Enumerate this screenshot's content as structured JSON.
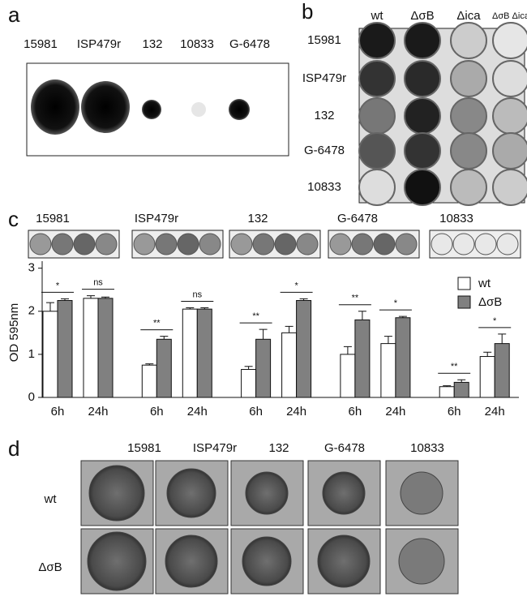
{
  "panel_a": {
    "label": "a",
    "strains": [
      "15981",
      "ISP479r",
      "132",
      "10833",
      "G-6478"
    ]
  },
  "panel_b": {
    "label": "b",
    "columns": [
      "wt",
      "ΔσB",
      "Δica",
      "ΔσB Δica"
    ],
    "rows": [
      "15981",
      "ISP479r",
      "132",
      "G-6478",
      "10833"
    ]
  },
  "chart_data": {
    "type": "bar",
    "label": "c",
    "ylabel": "OD 595nm",
    "groups": [
      "15981",
      "ISP479r",
      "132",
      "G-6478",
      "10833"
    ],
    "categories": [
      "6h",
      "24h",
      "6h",
      "24h",
      "6h",
      "24h",
      "6h",
      "24h",
      "6h",
      "24h"
    ],
    "series": [
      {
        "name": "wt",
        "color": "#ffffff",
        "values": [
          2.0,
          2.3,
          0.75,
          2.05,
          0.65,
          1.5,
          1.0,
          1.25,
          0.25,
          0.95
        ],
        "errors": [
          0.2,
          0.06,
          0.03,
          0.03,
          0.07,
          0.15,
          0.18,
          0.17,
          0.02,
          0.1
        ]
      },
      {
        "name": "ΔσB",
        "color": "#808080",
        "values": [
          2.25,
          2.3,
          1.35,
          2.05,
          1.35,
          2.25,
          1.8,
          1.85,
          0.35,
          1.25
        ],
        "errors": [
          0.04,
          0.03,
          0.07,
          0.03,
          0.23,
          0.04,
          0.2,
          0.03,
          0.06,
          0.22
        ]
      }
    ],
    "significance": [
      "*",
      "ns",
      "**",
      "ns",
      "**",
      "*",
      "**",
      "*",
      "**",
      "*"
    ],
    "ylim": [
      0,
      3.05
    ],
    "yticks": [
      0,
      1,
      2,
      3
    ]
  },
  "panel_d": {
    "label": "d",
    "columns": [
      "15981",
      "ISP479r",
      "132",
      "G-6478",
      "10833"
    ],
    "rows": [
      "wt",
      "ΔσB"
    ]
  }
}
